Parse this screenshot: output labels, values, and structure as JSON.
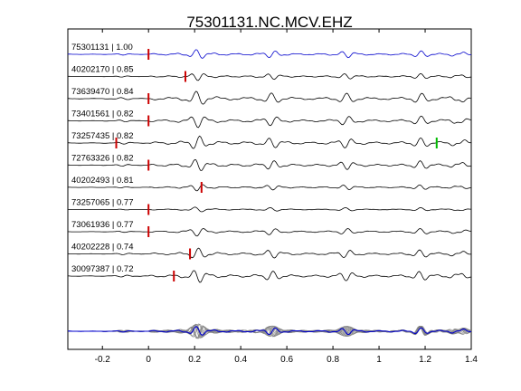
{
  "chart_data": {
    "type": "line",
    "title": "75301131.NC.MCV.EHZ",
    "xlabel": "",
    "ylabel": "",
    "xlim": [
      -0.35,
      1.4
    ],
    "x_ticks": [
      "-0.2",
      "0",
      "0.2",
      "0.4",
      "0.6",
      "0.8",
      "1",
      "1.2",
      "1.4"
    ],
    "x_tick_values": [
      -0.2,
      0,
      0.2,
      0.4,
      0.6,
      0.8,
      1.0,
      1.2,
      1.4
    ],
    "grid": false,
    "colors": {
      "reference": "#0000cc",
      "trace": "#000000",
      "stack": "#808080",
      "pick_red": "#cc0000",
      "pick_green": "#00bb00"
    },
    "traces": [
      {
        "label": "75301131 | 1.00",
        "amp": 0.55,
        "pick": 0.0,
        "pick_color": "red",
        "color": "blue"
      },
      {
        "label": "40202170 | 0.85",
        "amp": 0.45,
        "pick": 0.16,
        "pick_color": "red",
        "color": "black"
      },
      {
        "label": "73639470 | 0.84",
        "amp": 0.85,
        "pick": 0.0,
        "pick_color": "red",
        "color": "black"
      },
      {
        "label": "73401561 | 0.82",
        "amp": 0.75,
        "pick": 0.0,
        "pick_color": "red",
        "color": "black"
      },
      {
        "label": "73257435 | 0.82",
        "amp": 0.8,
        "pick": -0.14,
        "pick_color": "red",
        "pick2": 1.25,
        "pick2_color": "green",
        "color": "black"
      },
      {
        "label": "72763326 | 0.82",
        "amp": 0.7,
        "pick": 0.0,
        "pick_color": "red",
        "color": "black"
      },
      {
        "label": "40202493 | 0.81",
        "amp": 0.4,
        "pick": 0.23,
        "pick_color": "red",
        "color": "black"
      },
      {
        "label": "73257065 | 0.77",
        "amp": 0.3,
        "pick": 0.0,
        "pick_color": "red",
        "color": "black"
      },
      {
        "label": "73061936 | 0.77",
        "amp": 0.5,
        "pick": 0.0,
        "pick_color": "red",
        "color": "black"
      },
      {
        "label": "40202228 | 0.74",
        "amp": 0.65,
        "pick": 0.18,
        "pick_color": "red",
        "color": "black"
      },
      {
        "label": "30097387 | 0.72",
        "amp": 0.75,
        "pick": 0.11,
        "pick_color": "red",
        "color": "black"
      }
    ],
    "stack": {
      "count": 11,
      "color": "gray",
      "overlay": "blue"
    }
  }
}
